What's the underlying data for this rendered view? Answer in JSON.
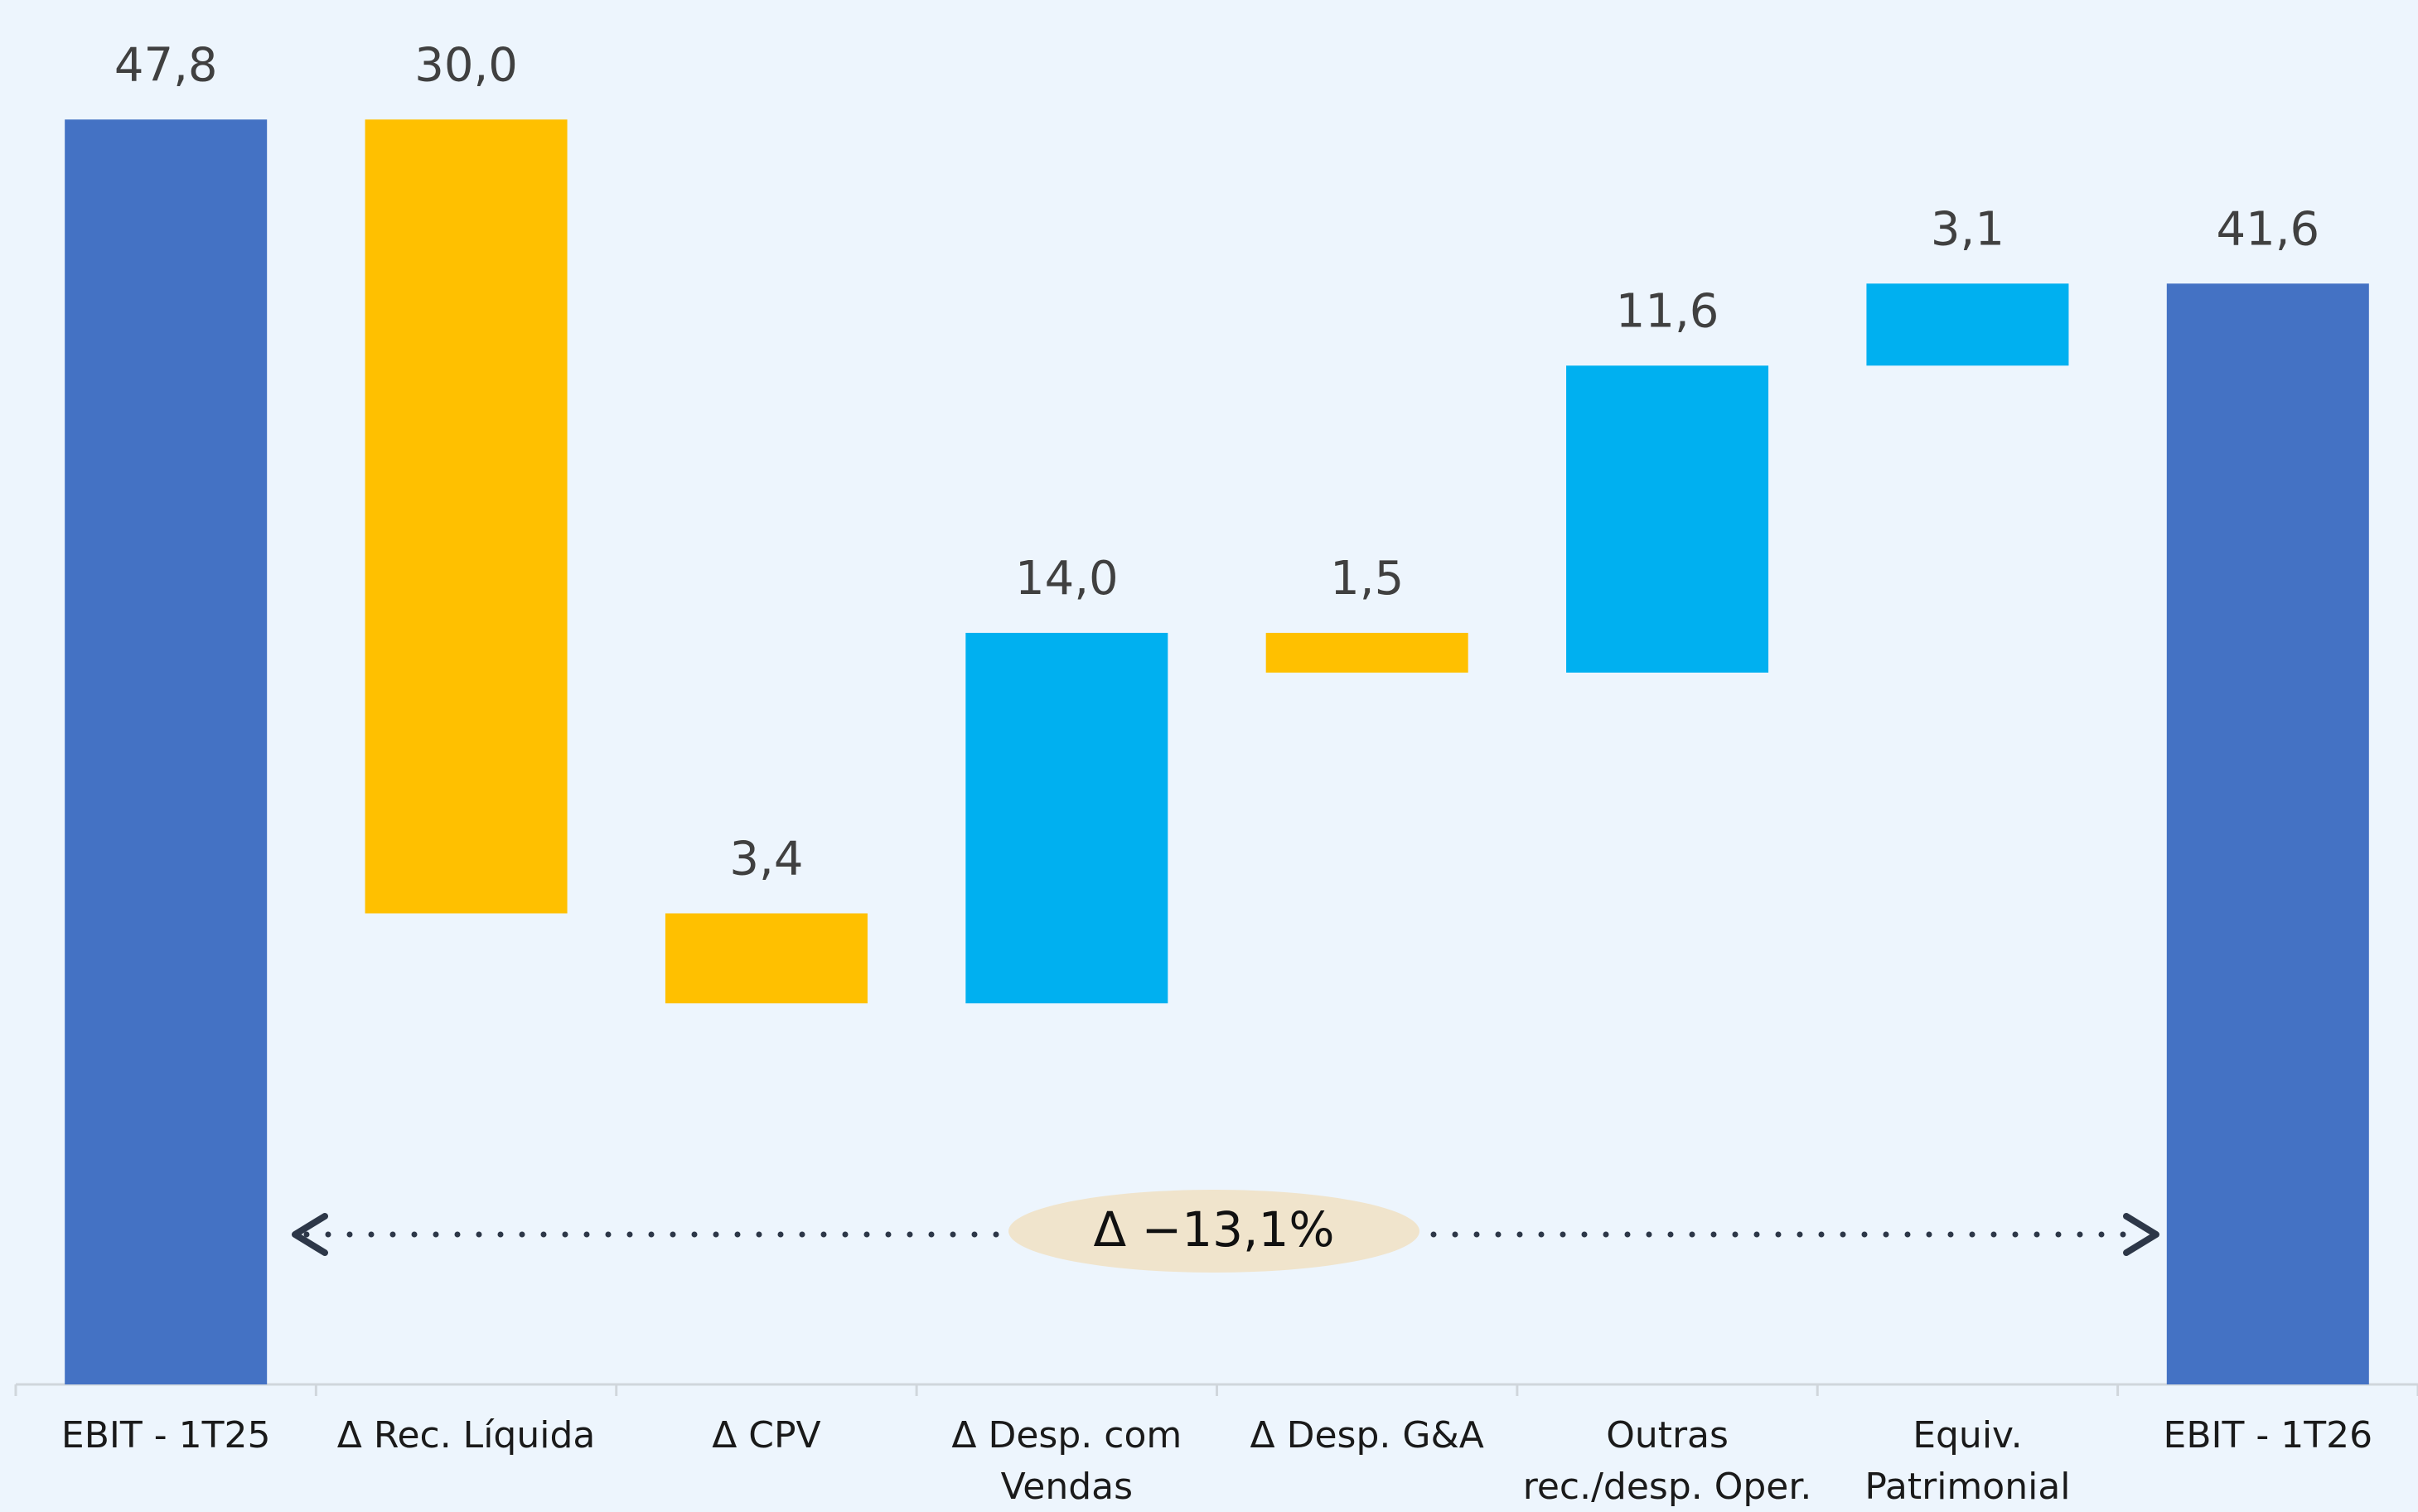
{
  "chart_data": {
    "type": "waterfall",
    "categories": [
      "EBIT - 1T25",
      "Δ Rec. Líquida",
      "Δ CPV",
      "Δ Desp. com Vendas",
      "Δ Desp. G&A",
      "Outras rec./desp. Oper.",
      "Equiv. Patrimonial",
      "EBIT - 1T26"
    ],
    "measure": [
      "total",
      "relative",
      "relative",
      "relative",
      "relative",
      "relative",
      "relative",
      "total"
    ],
    "values": [
      47.8,
      -30.0,
      -3.4,
      14.0,
      -1.5,
      11.6,
      3.1,
      41.6
    ],
    "value_labels": [
      "47,8",
      "30,0",
      "3,4",
      "14,0",
      "1,5",
      "11,6",
      "3,1",
      "41,6"
    ],
    "colors": {
      "total": "#4472c4",
      "increase": "#00b0f0",
      "decrease": "#ffc000"
    },
    "ylim": [
      0,
      50
    ],
    "annotation": "Δ −13,1%"
  }
}
